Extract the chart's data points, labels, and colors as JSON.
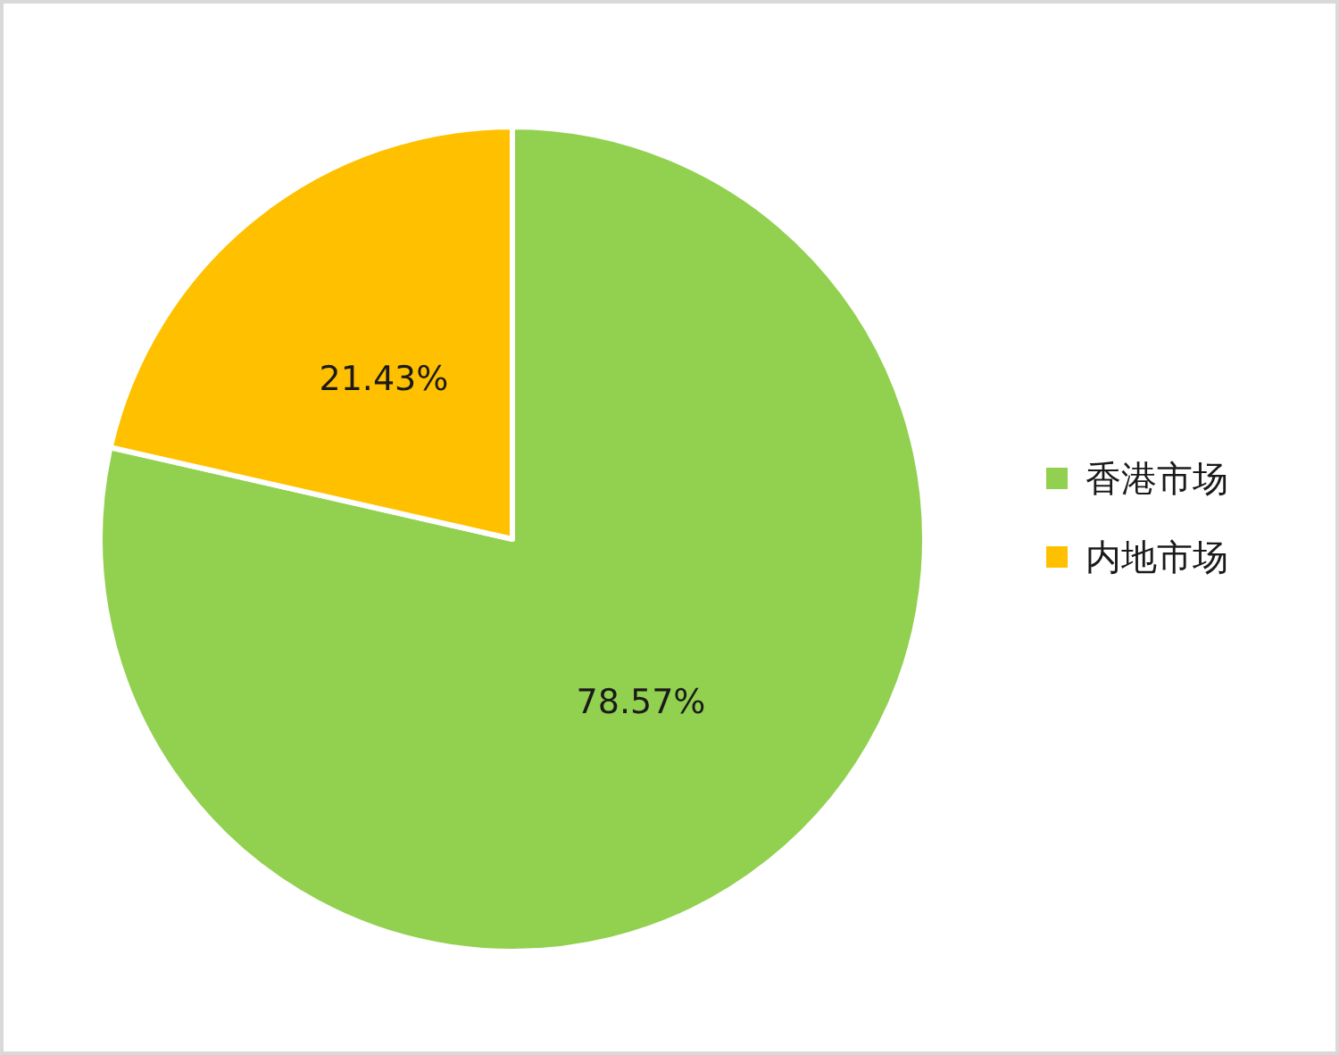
{
  "chart_data": {
    "type": "pie",
    "categories": [
      "香港市场",
      "内地市场"
    ],
    "values": [
      78.57,
      21.43
    ],
    "colors": [
      "#92d050",
      "#ffc000"
    ],
    "value_labels": [
      "78.57%",
      "21.43%"
    ],
    "legend": "right"
  }
}
